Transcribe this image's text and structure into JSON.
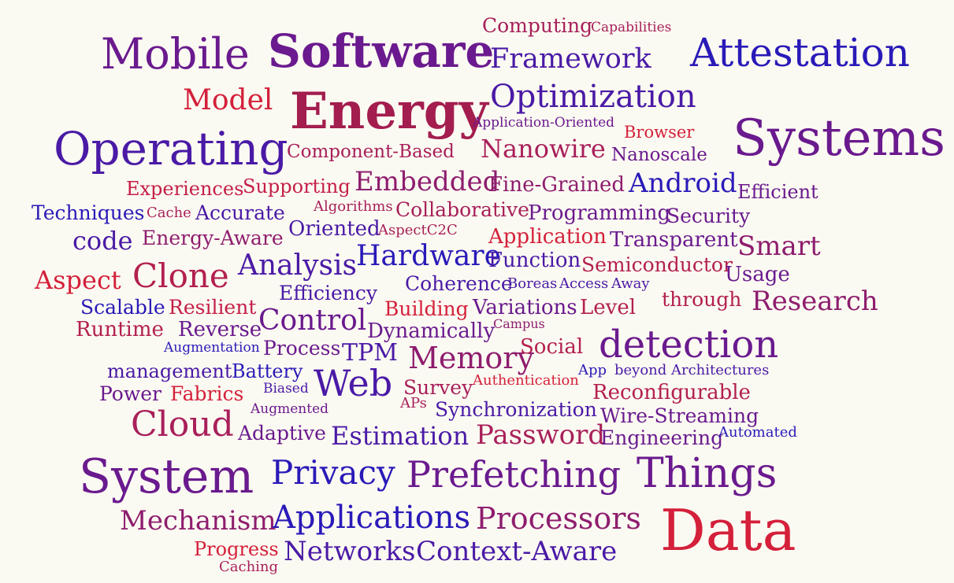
{
  "palette": {
    "red": "#d4203a",
    "crimson": "#b3204f",
    "magenta": "#8e1d6e",
    "purple": "#6a1a8e",
    "indigo": "#4a1aa6",
    "blue": "#2a1ab8",
    "background": "#fbfaf2"
  },
  "words": [
    {
      "text": "Computing",
      "color": "#a8205a"
    },
    {
      "text": "Capabilities",
      "color": "#a8205a"
    },
    {
      "text": "Mobile",
      "color": "#6a1a8e"
    },
    {
      "text": "Software",
      "color": "#6a1a8e"
    },
    {
      "text": "Framework",
      "color": "#4a1aa6"
    },
    {
      "text": "Attestation",
      "color": "#2a1ab8"
    },
    {
      "text": "Model",
      "color": "#d4203a"
    },
    {
      "text": "Energy",
      "color": "#a31d4e"
    },
    {
      "text": "Optimization",
      "color": "#4a1aa6"
    },
    {
      "text": "Application-Oriented",
      "color": "#6a1a8e"
    },
    {
      "text": "Browser",
      "color": "#d4203a"
    },
    {
      "text": "Operating",
      "color": "#4a1aa6"
    },
    {
      "text": "Component-Based",
      "color": "#a8205a"
    },
    {
      "text": "Nanowire",
      "color": "#a8205a"
    },
    {
      "text": "Nanoscale",
      "color": "#6a1a8e"
    },
    {
      "text": "Systems",
      "color": "#6a1a8e"
    },
    {
      "text": "Experiences",
      "color": "#c41f47"
    },
    {
      "text": "Supporting",
      "color": "#c41f47"
    },
    {
      "text": "Embedded",
      "color": "#8e1d6e"
    },
    {
      "text": "Fine-Grained",
      "color": "#8e1d6e"
    },
    {
      "text": "Android",
      "color": "#2a1ab8"
    },
    {
      "text": "Efficient",
      "color": "#6a1a8e"
    },
    {
      "text": "Techniques",
      "color": "#2a1ab8"
    },
    {
      "text": "Cache",
      "color": "#a8205a"
    },
    {
      "text": "Accurate",
      "color": "#4a1aa6"
    },
    {
      "text": "Algorithms",
      "color": "#a8205a"
    },
    {
      "text": "Collaborative",
      "color": "#a8205a"
    },
    {
      "text": "Programming",
      "color": "#6a1a8e"
    },
    {
      "text": "Security",
      "color": "#6a1a8e"
    },
    {
      "text": "code",
      "color": "#4a1aa6"
    },
    {
      "text": "Energy-Aware",
      "color": "#8e1d6e"
    },
    {
      "text": "Oriented",
      "color": "#4a1aa6"
    },
    {
      "text": "AspectC2C",
      "color": "#a8205a"
    },
    {
      "text": "Application",
      "color": "#d4203a"
    },
    {
      "text": "Transparent",
      "color": "#6a1a8e"
    },
    {
      "text": "Smart",
      "color": "#8e1d6e"
    },
    {
      "text": "Aspect",
      "color": "#d4203a"
    },
    {
      "text": "Clone",
      "color": "#b3204f"
    },
    {
      "text": "Analysis",
      "color": "#4a1aa6"
    },
    {
      "text": "Hardware",
      "color": "#2a1ab8"
    },
    {
      "text": "Function",
      "color": "#4a1aa6"
    },
    {
      "text": "Semiconductor",
      "color": "#b3204f"
    },
    {
      "text": "Usage",
      "color": "#6a1a8e"
    },
    {
      "text": "Coherence",
      "color": "#4a1aa6"
    },
    {
      "text": "Boreas",
      "color": "#4a1aa6"
    },
    {
      "text": "Access",
      "color": "#4a1aa6"
    },
    {
      "text": "Away",
      "color": "#4a1aa6"
    },
    {
      "text": "Scalable",
      "color": "#2a1ab8"
    },
    {
      "text": "Resilient",
      "color": "#c41f47"
    },
    {
      "text": "Efficiency",
      "color": "#4a1aa6"
    },
    {
      "text": "Building",
      "color": "#d4203a"
    },
    {
      "text": "Variations",
      "color": "#6a1a8e"
    },
    {
      "text": "Level",
      "color": "#b3204f"
    },
    {
      "text": "through",
      "color": "#b3204f"
    },
    {
      "text": "Research",
      "color": "#8e1d6e"
    },
    {
      "text": "Runtime",
      "color": "#b3204f"
    },
    {
      "text": "Reverse",
      "color": "#6a1a8e"
    },
    {
      "text": "Control",
      "color": "#6a1a8e"
    },
    {
      "text": "Dynamically",
      "color": "#6a1a8e"
    },
    {
      "text": "Campus",
      "color": "#8e1d6e"
    },
    {
      "text": "detection",
      "color": "#6a1a8e"
    },
    {
      "text": "Augmentation",
      "color": "#2a1ab8"
    },
    {
      "text": "Process",
      "color": "#6a1a8e"
    },
    {
      "text": "TPM",
      "color": "#4a1aa6"
    },
    {
      "text": "Memory",
      "color": "#8e1d6e"
    },
    {
      "text": "Social",
      "color": "#b3204f"
    },
    {
      "text": "management",
      "color": "#4a1aa6"
    },
    {
      "text": "Battery",
      "color": "#2a1ab8"
    },
    {
      "text": "Web",
      "color": "#4a1aa6"
    },
    {
      "text": "App",
      "color": "#2a1ab8"
    },
    {
      "text": "beyond",
      "color": "#4a1aa6"
    },
    {
      "text": "Architectures",
      "color": "#4a1aa6"
    },
    {
      "text": "Power",
      "color": "#6a1a8e"
    },
    {
      "text": "Fabrics",
      "color": "#d4203a"
    },
    {
      "text": "Biased",
      "color": "#4a1aa6"
    },
    {
      "text": "Survey",
      "color": "#a8205a"
    },
    {
      "text": "Authentication",
      "color": "#d4203a"
    },
    {
      "text": "Reconfigurable",
      "color": "#b3204f"
    },
    {
      "text": "Augmented",
      "color": "#6a1a8e"
    },
    {
      "text": "APs",
      "color": "#a8205a"
    },
    {
      "text": "Synchronization",
      "color": "#4a1aa6"
    },
    {
      "text": "Wire-Streaming",
      "color": "#6a1a8e"
    },
    {
      "text": "Cloud",
      "color": "#a8205a"
    },
    {
      "text": "Adaptive",
      "color": "#6a1a8e"
    },
    {
      "text": "Estimation",
      "color": "#4a1aa6"
    },
    {
      "text": "Password",
      "color": "#a8205a"
    },
    {
      "text": "Engineering",
      "color": "#6a1a8e"
    },
    {
      "text": "Automated",
      "color": "#2a1ab8"
    },
    {
      "text": "System",
      "color": "#6a1a8e"
    },
    {
      "text": "Privacy",
      "color": "#2a1ab8"
    },
    {
      "text": "Prefetching",
      "color": "#6a1a8e"
    },
    {
      "text": "Things",
      "color": "#6a1a8e"
    },
    {
      "text": "Mechanism",
      "color": "#8e1d6e"
    },
    {
      "text": "Applications",
      "color": "#2a1ab8"
    },
    {
      "text": "Processors",
      "color": "#8e1d6e"
    },
    {
      "text": "Data",
      "color": "#d4203a"
    },
    {
      "text": "Progress",
      "color": "#d4203a"
    },
    {
      "text": "Caching",
      "color": "#a8205a"
    },
    {
      "text": "Networks",
      "color": "#4a1aa6"
    },
    {
      "text": "Context-Aware",
      "color": "#4a1aa6"
    }
  ]
}
